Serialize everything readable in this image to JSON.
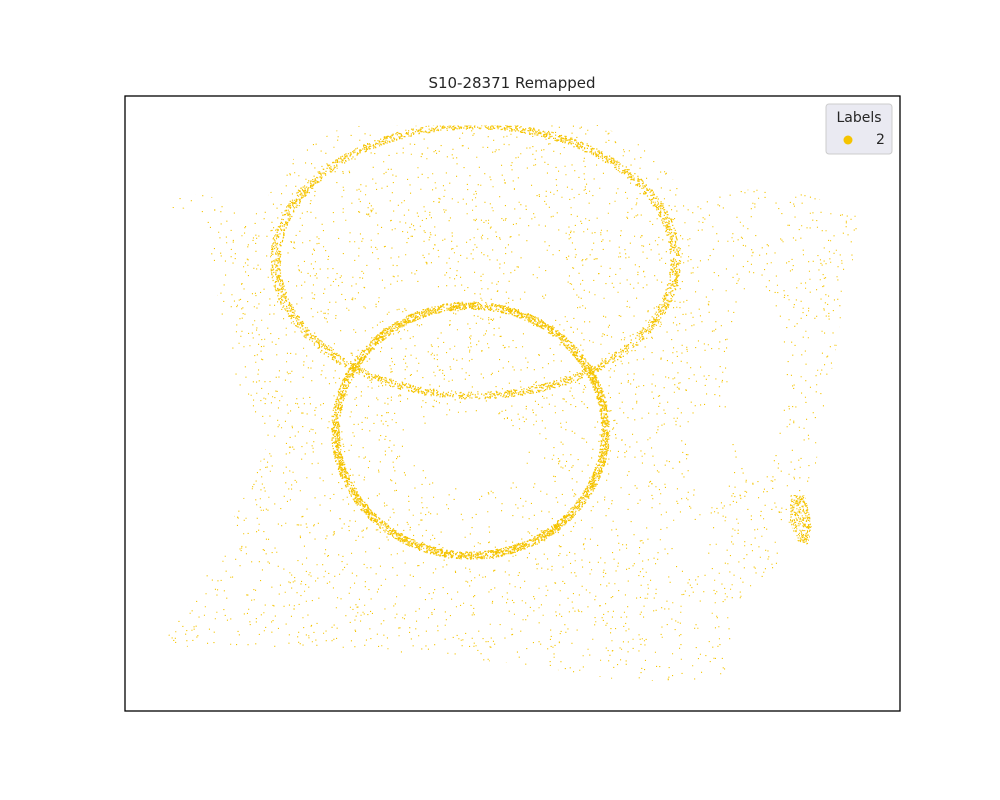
{
  "chart_data": {
    "type": "scatter",
    "title": "S10-28371 Remapped",
    "xlabel": "",
    "ylabel": "",
    "axes_ticks": "hidden",
    "grid": false,
    "legend": {
      "title": "Labels",
      "placement": "top-right",
      "entries": [
        {
          "label": "2",
          "color": "#f5c400"
        }
      ]
    },
    "series": [
      {
        "name": "2",
        "color": "#f5c400",
        "point_count_estimate": "dense (tens of thousands)"
      }
    ]
  }
}
